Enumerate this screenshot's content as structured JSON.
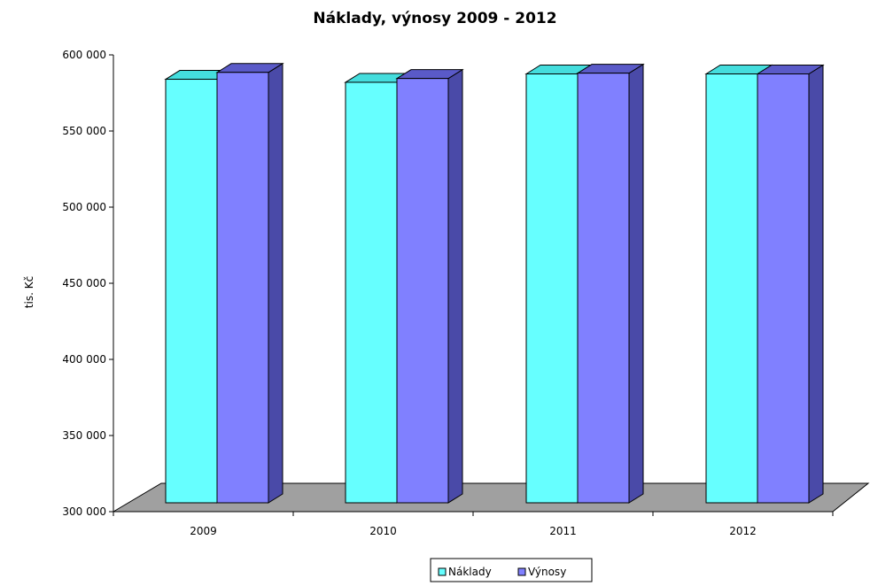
{
  "chart_data": {
    "type": "bar",
    "title": "Náklady, výnosy 2009 - 2012",
    "ylabel": "tis. Kč",
    "xlabel": "",
    "categories": [
      "2009",
      "2010",
      "2011",
      "2012"
    ],
    "series": [
      {
        "name": "Náklady",
        "values": [
          584000,
          582000,
          587500,
          587500
        ]
      },
      {
        "name": "Výnosy",
        "values": [
          588500,
          584500,
          588000,
          587500
        ]
      }
    ],
    "ylim": [
      300000,
      600000
    ],
    "yticks": [
      "300 000",
      "350 000",
      "400 000",
      "450 000",
      "500 000",
      "550 000",
      "600 000"
    ],
    "ytick_values": [
      300000,
      350000,
      400000,
      450000,
      500000,
      550000,
      600000
    ],
    "legend_position": "bottom",
    "grid": false,
    "colors": {
      "series1_front": "#66ffff",
      "series1_side": "#33bbbb",
      "series1_top": "#44dddd",
      "series2_front": "#8080ff",
      "series2_side": "#4a4aa8",
      "series2_top": "#5a5ac8",
      "floor": "#a0a0a0"
    }
  }
}
